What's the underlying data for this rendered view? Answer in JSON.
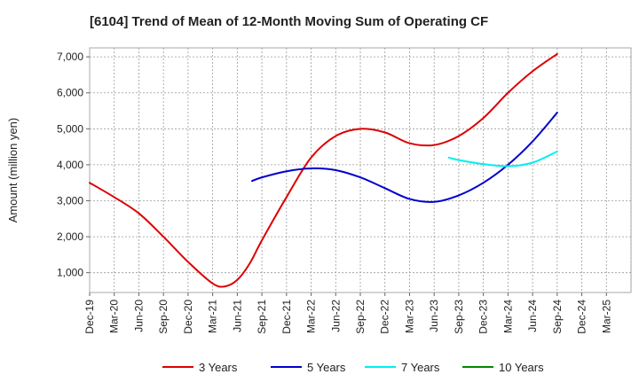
{
  "chart_data": {
    "type": "line",
    "title": "[6104]  Trend of Mean of 12-Month Moving Sum of Operating CF",
    "xlabel": "",
    "ylabel": "Amount (million yen)",
    "ylim": [
      450,
      7250
    ],
    "yticks": [
      1000,
      2000,
      3000,
      4000,
      5000,
      6000,
      7000
    ],
    "ytick_labels": [
      "1,000",
      "2,000",
      "3,000",
      "4,000",
      "5,000",
      "6,000",
      "7,000"
    ],
    "x_tick_labels": [
      "Dec-19",
      "Mar-20",
      "Jun-20",
      "Sep-20",
      "Dec-20",
      "Mar-21",
      "Jun-21",
      "Sep-21",
      "Dec-21",
      "Mar-22",
      "Jun-22",
      "Sep-22",
      "Dec-22",
      "Mar-23",
      "Jun-23",
      "Sep-23",
      "Dec-23",
      "Mar-24",
      "Jun-24",
      "Sep-24",
      "Dec-24",
      "Mar-25"
    ],
    "grid": true,
    "legend_position": "bottom",
    "series": [
      {
        "name": "3 Years",
        "color": "#dd0000",
        "points": [
          [
            0,
            3500
          ],
          [
            1,
            3100
          ],
          [
            2,
            2650
          ],
          [
            3,
            2000
          ],
          [
            4,
            1300
          ],
          [
            5,
            700
          ],
          [
            5.5,
            620
          ],
          [
            6,
            800
          ],
          [
            6.5,
            1250
          ],
          [
            7,
            1900
          ],
          [
            8,
            3100
          ],
          [
            9,
            4200
          ],
          [
            10,
            4800
          ],
          [
            11,
            5000
          ],
          [
            12,
            4900
          ],
          [
            13,
            4600
          ],
          [
            14,
            4550
          ],
          [
            15,
            4800
          ],
          [
            16,
            5300
          ],
          [
            17,
            6000
          ],
          [
            18,
            6600
          ],
          [
            19,
            7080
          ]
        ]
      },
      {
        "name": "5 Years",
        "color": "#0000cc",
        "points": [
          [
            6.6,
            3550
          ],
          [
            7,
            3650
          ],
          [
            8,
            3820
          ],
          [
            9,
            3900
          ],
          [
            10,
            3850
          ],
          [
            11,
            3650
          ],
          [
            12,
            3350
          ],
          [
            13,
            3050
          ],
          [
            14,
            2970
          ],
          [
            15,
            3150
          ],
          [
            16,
            3500
          ],
          [
            17,
            4000
          ],
          [
            18,
            4650
          ],
          [
            19,
            5450
          ]
        ]
      },
      {
        "name": "7 Years",
        "color": "#00eeee",
        "points": [
          [
            14.6,
            4200
          ],
          [
            15,
            4130
          ],
          [
            16,
            4020
          ],
          [
            17,
            3960
          ],
          [
            18,
            4060
          ],
          [
            19,
            4370
          ]
        ]
      },
      {
        "name": "10 Years",
        "color": "#008800",
        "points": []
      }
    ]
  }
}
